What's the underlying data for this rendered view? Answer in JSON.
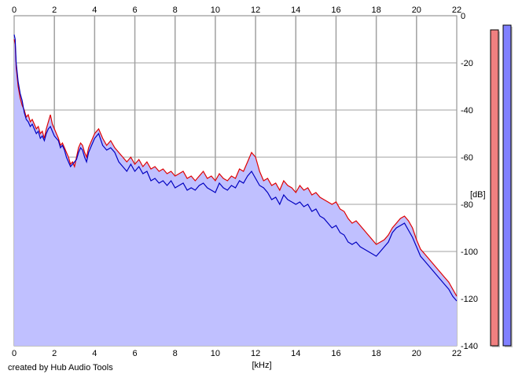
{
  "credit": "created by Hub Audio Tools",
  "chart_data": {
    "type": "area",
    "xlabel": "[kHz]",
    "ylabel": "[dB]",
    "xlim": [
      0,
      22
    ],
    "ylim": [
      -140,
      0
    ],
    "xticks": [
      0,
      2,
      4,
      6,
      8,
      10,
      12,
      14,
      16,
      18,
      20,
      22
    ],
    "yticks": [
      0,
      -20,
      -40,
      -60,
      -80,
      -100,
      -120,
      -140
    ],
    "grid": true,
    "colors": {
      "left": "#e00000",
      "right": "#0000c0",
      "fill": "#c0c0ff"
    },
    "series": [
      {
        "channel": "left",
        "x": [
          0,
          0.05,
          0.1,
          0.2,
          0.3,
          0.4,
          0.5,
          0.6,
          0.7,
          0.8,
          0.9,
          1.0,
          1.1,
          1.2,
          1.3,
          1.4,
          1.5,
          1.6,
          1.7,
          1.8,
          1.9,
          2.0,
          2.1,
          2.2,
          2.3,
          2.4,
          2.5,
          2.6,
          2.7,
          2.8,
          2.9,
          3.0,
          3.1,
          3.2,
          3.3,
          3.4,
          3.5,
          3.6,
          3.7,
          3.8,
          3.9,
          4.0,
          4.2,
          4.4,
          4.6,
          4.8,
          5.0,
          5.2,
          5.4,
          5.6,
          5.8,
          6.0,
          6.2,
          6.4,
          6.6,
          6.8,
          7.0,
          7.2,
          7.4,
          7.6,
          7.8,
          8.0,
          8.2,
          8.4,
          8.6,
          8.8,
          9.0,
          9.2,
          9.4,
          9.6,
          9.8,
          10.0,
          10.2,
          10.4,
          10.6,
          10.8,
          11.0,
          11.2,
          11.4,
          11.6,
          11.8,
          12.0,
          12.2,
          12.4,
          12.6,
          12.8,
          13.0,
          13.2,
          13.4,
          13.6,
          13.8,
          14.0,
          14.2,
          14.4,
          14.6,
          14.8,
          15.0,
          15.2,
          15.4,
          15.6,
          15.8,
          16.0,
          16.2,
          16.4,
          16.6,
          16.8,
          17.0,
          17.2,
          17.4,
          17.6,
          17.8,
          18.0,
          18.2,
          18.4,
          18.6,
          18.8,
          19.0,
          19.2,
          19.4,
          19.6,
          19.8,
          20.0,
          20.2,
          20.4,
          20.6,
          20.8,
          21.0,
          21.2,
          21.4,
          21.6,
          21.8,
          22.0
        ],
        "y": [
          -10,
          -12,
          -22,
          -30,
          -35,
          -38,
          -40,
          -43,
          -42,
          -45,
          -44,
          -46,
          -48,
          -47,
          -50,
          -49,
          -52,
          -48,
          -45,
          -42,
          -46,
          -48,
          -50,
          -52,
          -55,
          -54,
          -56,
          -58,
          -60,
          -63,
          -62,
          -64,
          -60,
          -56,
          -54,
          -55,
          -58,
          -60,
          -56,
          -54,
          -52,
          -50,
          -48,
          -52,
          -55,
          -53,
          -56,
          -58,
          -60,
          -62,
          -60,
          -63,
          -61,
          -64,
          -62,
          -65,
          -64,
          -66,
          -65,
          -67,
          -66,
          -68,
          -67,
          -66,
          -69,
          -68,
          -70,
          -68,
          -66,
          -69,
          -68,
          -70,
          -67,
          -69,
          -70,
          -68,
          -69,
          -65,
          -66,
          -62,
          -58,
          -60,
          -66,
          -70,
          -69,
          -72,
          -71,
          -74,
          -70,
          -72,
          -73,
          -75,
          -72,
          -74,
          -73,
          -76,
          -75,
          -77,
          -78,
          -79,
          -80,
          -79,
          -82,
          -83,
          -86,
          -88,
          -87,
          -89,
          -91,
          -93,
          -95,
          -97,
          -96,
          -95,
          -93,
          -90,
          -88,
          -86,
          -85,
          -87,
          -90,
          -95,
          -99,
          -101,
          -103,
          -105,
          -107,
          -109,
          -111,
          -113,
          -116,
          -119
        ]
      },
      {
        "channel": "right",
        "x": [
          0,
          0.05,
          0.1,
          0.2,
          0.3,
          0.4,
          0.5,
          0.6,
          0.7,
          0.8,
          0.9,
          1.0,
          1.1,
          1.2,
          1.3,
          1.4,
          1.5,
          1.6,
          1.7,
          1.8,
          1.9,
          2.0,
          2.1,
          2.2,
          2.3,
          2.4,
          2.5,
          2.6,
          2.7,
          2.8,
          2.9,
          3.0,
          3.1,
          3.2,
          3.3,
          3.4,
          3.5,
          3.6,
          3.7,
          3.8,
          3.9,
          4.0,
          4.2,
          4.4,
          4.6,
          4.8,
          5.0,
          5.2,
          5.4,
          5.6,
          5.8,
          6.0,
          6.2,
          6.4,
          6.6,
          6.8,
          7.0,
          7.2,
          7.4,
          7.6,
          7.8,
          8.0,
          8.2,
          8.4,
          8.6,
          8.8,
          9.0,
          9.2,
          9.4,
          9.6,
          9.8,
          10.0,
          10.2,
          10.4,
          10.6,
          10.8,
          11.0,
          11.2,
          11.4,
          11.6,
          11.8,
          12.0,
          12.2,
          12.4,
          12.6,
          12.8,
          13.0,
          13.2,
          13.4,
          13.6,
          13.8,
          14.0,
          14.2,
          14.4,
          14.6,
          14.8,
          15.0,
          15.2,
          15.4,
          15.6,
          15.8,
          16.0,
          16.2,
          16.4,
          16.6,
          16.8,
          17.0,
          17.2,
          17.4,
          17.6,
          17.8,
          18.0,
          18.2,
          18.4,
          18.6,
          18.8,
          19.0,
          19.2,
          19.4,
          19.6,
          19.8,
          20.0,
          20.2,
          20.4,
          20.6,
          20.8,
          21.0,
          21.2,
          21.4,
          21.6,
          21.8,
          22.0
        ],
        "y": [
          -8,
          -10,
          -20,
          -28,
          -33,
          -36,
          -41,
          -44,
          -45,
          -47,
          -46,
          -48,
          -50,
          -49,
          -52,
          -51,
          -53,
          -50,
          -48,
          -47,
          -49,
          -51,
          -52,
          -53,
          -56,
          -55,
          -57,
          -60,
          -62,
          -64,
          -63,
          -62,
          -61,
          -58,
          -56,
          -57,
          -60,
          -62,
          -58,
          -56,
          -54,
          -52,
          -50,
          -55,
          -57,
          -56,
          -58,
          -62,
          -64,
          -66,
          -63,
          -66,
          -64,
          -67,
          -66,
          -70,
          -69,
          -71,
          -70,
          -72,
          -70,
          -73,
          -72,
          -71,
          -74,
          -73,
          -74,
          -72,
          -71,
          -73,
          -74,
          -75,
          -71,
          -73,
          -74,
          -72,
          -73,
          -70,
          -71,
          -68,
          -66,
          -69,
          -72,
          -73,
          -75,
          -78,
          -77,
          -80,
          -76,
          -78,
          -79,
          -80,
          -79,
          -81,
          -80,
          -83,
          -82,
          -85,
          -86,
          -88,
          -90,
          -89,
          -92,
          -93,
          -96,
          -97,
          -96,
          -98,
          -99,
          -100,
          -101,
          -102,
          -100,
          -98,
          -96,
          -92,
          -90,
          -89,
          -88,
          -91,
          -94,
          -98,
          -102,
          -104,
          -106,
          -108,
          -110,
          -112,
          -114,
          -116,
          -119,
          -121
        ]
      }
    ],
    "meters": [
      {
        "channel": "left",
        "level_db": -6,
        "color": "#f08080"
      },
      {
        "channel": "right",
        "level_db": -4,
        "color": "#8080ff"
      }
    ]
  }
}
